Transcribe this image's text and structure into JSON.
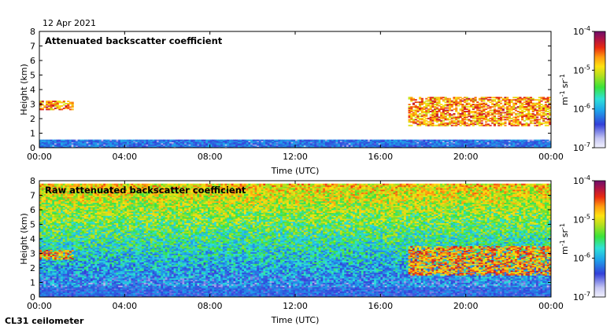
{
  "date_label": "12 Apr 2021",
  "instrument_label": "CL31 ceilometer",
  "chart_data": [
    {
      "type": "heatmap",
      "title": "Attenuated backscatter coefficient",
      "xlabel": "Time (UTC)",
      "ylabel": "Height (km)",
      "x_ticks": [
        "00:00",
        "04:00",
        "08:00",
        "12:00",
        "16:00",
        "20:00",
        "00:00"
      ],
      "xlim_hours": [
        0,
        24
      ],
      "y_ticks": [
        "0",
        "1",
        "2",
        "3",
        "4",
        "5",
        "6",
        "7",
        "8"
      ],
      "ylim_km": [
        0,
        8
      ],
      "colorbar": {
        "scale": "log",
        "range": [
          1e-07,
          0.0001
        ],
        "tick_labels": [
          {
            "base": "10",
            "exp": "-4"
          },
          {
            "base": "10",
            "exp": "-5"
          },
          {
            "base": "10",
            "exp": "-6"
          },
          {
            "base": "10",
            "exp": "-7"
          }
        ],
        "unit_label": {
          "m": "m",
          "m_exp": "-1",
          "sr": "sr",
          "sr_exp": "-1"
        }
      },
      "features": [
        {
          "name": "boundary layer",
          "start_h": 0,
          "end_h": 24,
          "top_km": 0.5,
          "level": 0.18
        },
        {
          "name": "cloud layer",
          "start_h": 0,
          "end_h": 1.6,
          "base_km": 2.6,
          "top_km": 3.2,
          "level": 0.75
        },
        {
          "name": "cloud layer",
          "start_h": 17.3,
          "end_h": 24,
          "base_km": 1.5,
          "top_km": 3.5,
          "level": 0.75
        }
      ]
    },
    {
      "type": "heatmap",
      "title": "Raw attenuated backscatter coefficient",
      "xlabel": "Time (UTC)",
      "ylabel": "Height (km)",
      "x_ticks": [
        "00:00",
        "04:00",
        "08:00",
        "12:00",
        "16:00",
        "20:00",
        "00:00"
      ],
      "xlim_hours": [
        0,
        24
      ],
      "y_ticks": [
        "0",
        "1",
        "2",
        "3",
        "4",
        "5",
        "6",
        "7",
        "8"
      ],
      "ylim_km": [
        0,
        8
      ],
      "colorbar": {
        "scale": "log",
        "range": [
          1e-07,
          0.0001
        ],
        "tick_labels": [
          {
            "base": "10",
            "exp": "-4"
          },
          {
            "base": "10",
            "exp": "-5"
          },
          {
            "base": "10",
            "exp": "-6"
          },
          {
            "base": "10",
            "exp": "-7"
          }
        ],
        "unit_label": {
          "m": "m",
          "m_exp": "-1",
          "sr": "sr",
          "sr_exp": "-1"
        }
      },
      "features": [
        {
          "name": "noise background",
          "start_h": 0,
          "end_h": 24,
          "base_km": 0,
          "top_km": 7.7,
          "level": 0.45
        },
        {
          "name": "cloud layer",
          "start_h": 0,
          "end_h": 1.6,
          "base_km": 2.6,
          "top_km": 3.2,
          "level": 0.75
        },
        {
          "name": "cloud layer",
          "start_h": 17.3,
          "end_h": 24,
          "base_km": 1.5,
          "top_km": 3.5,
          "level": 0.75
        }
      ]
    }
  ]
}
